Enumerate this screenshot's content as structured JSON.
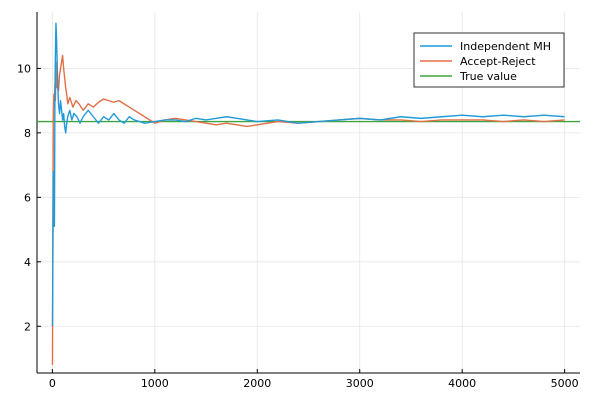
{
  "chart_data": {
    "type": "line",
    "title": "",
    "xlabel": "",
    "ylabel": "",
    "xlim": [
      -150,
      5150
    ],
    "ylim": [
      0.55,
      11.75
    ],
    "x_ticks": [
      0,
      1000,
      2000,
      3000,
      4000,
      5000
    ],
    "y_ticks": [
      2,
      4,
      6,
      8,
      10
    ],
    "grid": true,
    "legend_position": "top-right",
    "series": [
      {
        "name": "Independent MH",
        "color": "#1f9bd9",
        "x": [
          1,
          10,
          20,
          25,
          30,
          35,
          40,
          45,
          50,
          55,
          60,
          70,
          80,
          90,
          100,
          110,
          120,
          130,
          140,
          150,
          170,
          190,
          210,
          240,
          270,
          300,
          350,
          400,
          450,
          500,
          550,
          600,
          650,
          700,
          750,
          800,
          900,
          1000,
          1100,
          1200,
          1300,
          1400,
          1500,
          1600,
          1700,
          1800,
          1900,
          2000,
          2200,
          2400,
          2600,
          2800,
          3000,
          3200,
          3400,
          3600,
          3800,
          4000,
          4200,
          4400,
          4600,
          4800,
          5000
        ],
        "y": [
          2.0,
          6.8,
          5.1,
          9.2,
          10.5,
          11.4,
          11.0,
          10.4,
          9.8,
          9.3,
          8.9,
          8.6,
          9.0,
          8.7,
          8.4,
          8.6,
          8.2,
          8.0,
          8.3,
          8.5,
          8.7,
          8.4,
          8.6,
          8.5,
          8.3,
          8.5,
          8.7,
          8.5,
          8.3,
          8.5,
          8.4,
          8.6,
          8.4,
          8.3,
          8.5,
          8.4,
          8.3,
          8.35,
          8.4,
          8.4,
          8.35,
          8.45,
          8.4,
          8.45,
          8.5,
          8.45,
          8.4,
          8.35,
          8.4,
          8.3,
          8.35,
          8.4,
          8.45,
          8.4,
          8.5,
          8.45,
          8.5,
          8.55,
          8.5,
          8.55,
          8.5,
          8.55,
          8.5
        ]
      },
      {
        "name": "Accept-Reject",
        "color": "#e26f46",
        "x": [
          1,
          5,
          10,
          15,
          20,
          25,
          30,
          35,
          40,
          45,
          50,
          60,
          70,
          80,
          90,
          100,
          110,
          120,
          130,
          140,
          150,
          170,
          200,
          230,
          260,
          300,
          350,
          400,
          450,
          500,
          550,
          600,
          650,
          700,
          750,
          800,
          850,
          900,
          950,
          1000,
          1100,
          1200,
          1300,
          1400,
          1500,
          1600,
          1700,
          1800,
          1900,
          2000,
          2100,
          2200,
          2400,
          2600,
          2800,
          3000,
          3200,
          3400,
          3600,
          3800,
          4000,
          4200,
          4400,
          4600,
          4800,
          5000
        ],
        "y": [
          0.8,
          5.0,
          8.6,
          9.2,
          8.8,
          9.5,
          9.0,
          10.2,
          9.7,
          9.4,
          9.6,
          9.3,
          9.8,
          10.0,
          10.2,
          10.4,
          10.0,
          9.7,
          9.4,
          9.2,
          8.9,
          9.1,
          8.8,
          9.0,
          8.9,
          8.7,
          8.9,
          8.8,
          8.95,
          9.05,
          9.0,
          8.95,
          9.0,
          8.9,
          8.8,
          8.7,
          8.6,
          8.5,
          8.4,
          8.3,
          8.4,
          8.45,
          8.4,
          8.35,
          8.3,
          8.25,
          8.3,
          8.25,
          8.2,
          8.25,
          8.3,
          8.35,
          8.3,
          8.35,
          8.4,
          8.45,
          8.4,
          8.4,
          8.35,
          8.4,
          8.4,
          8.4,
          8.35,
          8.4,
          8.35,
          8.4
        ]
      },
      {
        "name": "True value",
        "color": "#3ea541",
        "x": [
          -150,
          5150
        ],
        "y": [
          8.35,
          8.35
        ]
      }
    ]
  }
}
